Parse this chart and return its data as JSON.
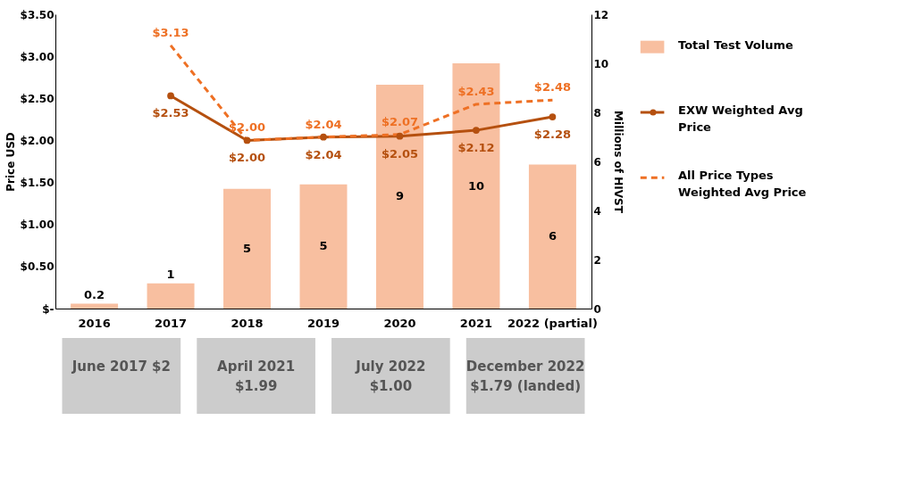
{
  "chart_data": {
    "type": "bar",
    "categories": [
      "2016",
      "2017",
      "2018",
      "2019",
      "2020",
      "2021",
      "2022 (partial)"
    ],
    "series": [
      {
        "name": "Total Test Volume",
        "axis": "y2",
        "color": "#f8bfa0",
        "values": [
          0.2,
          1.03,
          4.88,
          5.06,
          9.13,
          10.0,
          5.87
        ],
        "value_labels": [
          "0.2",
          "1",
          "5",
          "5",
          "9",
          "10",
          "6"
        ]
      },
      {
        "name": "EXW Weighted Avg Price",
        "type": "line",
        "color": "#b5500f",
        "marker": "circle",
        "line_style": "solid",
        "values": [
          null,
          2.53,
          2.0,
          2.04,
          2.05,
          2.12,
          2.28
        ],
        "value_labels": [
          null,
          "$2.53",
          "$2.00",
          "$2.04",
          "$2.05",
          "$2.12",
          "$2.28"
        ]
      },
      {
        "name": "All Price Types Weighted Avg Price",
        "type": "line",
        "color": "#ee7024",
        "marker": "none",
        "line_style": "dashed",
        "values": [
          null,
          3.13,
          2.0,
          2.04,
          2.07,
          2.43,
          2.48
        ],
        "value_labels": [
          null,
          "$3.13",
          "$2.00",
          "$2.04",
          "$2.07",
          "$2.43",
          "$2.48"
        ]
      }
    ],
    "ylabel": "Price USD",
    "y2label": "Millions of HIVST",
    "ylim": [
      0,
      3.5
    ],
    "yticks": [
      {
        "value": 0,
        "label": "$-"
      },
      {
        "value": 0.5,
        "label": "$0.50"
      },
      {
        "value": 1,
        "label": "$1.00"
      },
      {
        "value": 1.5,
        "label": "$1.50"
      },
      {
        "value": 2,
        "label": "$2.00"
      },
      {
        "value": 2.5,
        "label": "$2.50"
      },
      {
        "value": 3,
        "label": "$3.00"
      },
      {
        "value": 3.5,
        "label": "$3.50"
      }
    ],
    "y2lim": [
      0,
      12
    ],
    "y2ticks": [
      0,
      2,
      4,
      6,
      8,
      10,
      12
    ],
    "grid": false,
    "legend": "right",
    "annotations": [
      "June 2017 $2",
      "April 2021 $1.99",
      "July 2022 $1.00",
      "December 2022 $1.79 (landed)"
    ]
  }
}
